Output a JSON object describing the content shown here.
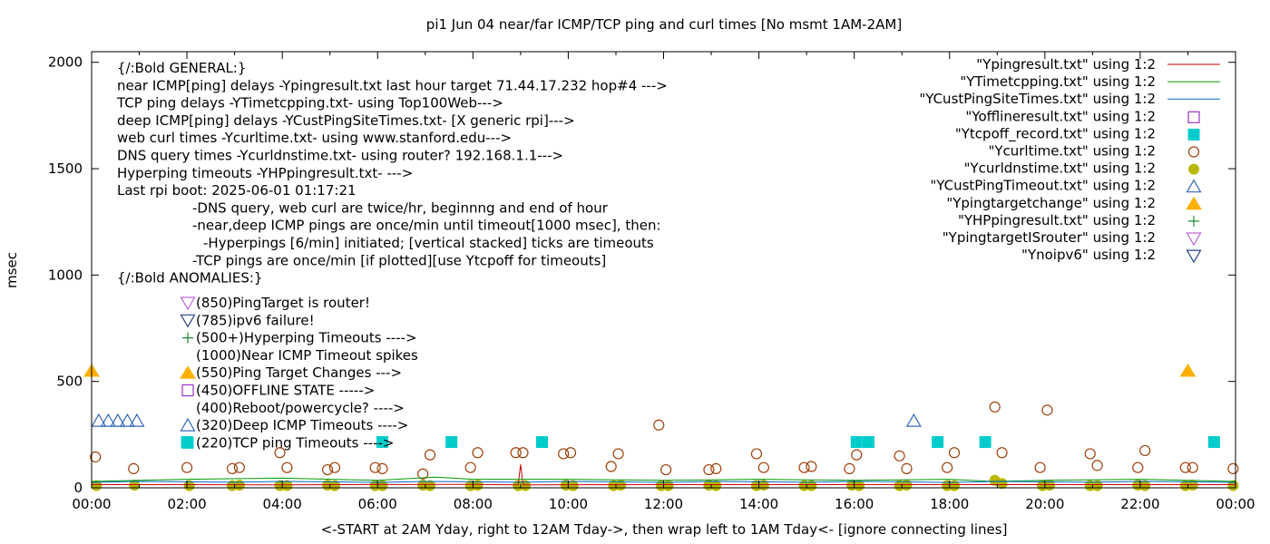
{
  "chart_data": {
    "type": "scatter",
    "title": "pi1 Jun 04  near/far ICMP/TCP ping and curl times [No msmt 1AM-2AM]",
    "xlabel": "<-START at 2AM Yday, right to 12AM Tday->, then wrap left to 1AM Tday<- [ignore connecting lines]",
    "ylabel": "msec",
    "xlim": [
      0,
      24
    ],
    "ylim": [
      0,
      2050
    ],
    "x_ticks": [
      "00:00",
      "02:00",
      "04:00",
      "06:00",
      "08:00",
      "10:00",
      "12:00",
      "14:00",
      "16:00",
      "18:00",
      "20:00",
      "22:00",
      "00:00"
    ],
    "y_ticks": [
      "0",
      "500",
      "1000",
      "1500",
      "2000"
    ],
    "y_tick_values": [
      0,
      500,
      1000,
      1500,
      2000
    ],
    "legend_placement": "top-right",
    "legend": [
      {
        "label": "\"Ypingresult.txt\" using 1:2",
        "symbol": "line",
        "color": "#cc0000"
      },
      {
        "label": "\"YTimetcpping.txt\" using 1:2",
        "symbol": "line",
        "color": "#009900"
      },
      {
        "label": "\"YCustPingSiteTimes.txt\" using 1:2",
        "symbol": "line",
        "color": "#0066cc"
      },
      {
        "label": "\"Yofflineresult.txt\" using 1:2",
        "symbol": "open-square",
        "color": "#9933cc"
      },
      {
        "label": "\"Ytcpoff_record.txt\" using 1:2",
        "symbol": "filled-square",
        "color": "#00cccc"
      },
      {
        "label": "\"Ycurltime.txt\" using 1:2",
        "symbol": "open-circle",
        "color": "#a0400a"
      },
      {
        "label": "\"Ycurldnstime.txt\" using 1:2",
        "symbol": "filled-circle",
        "color": "#b8b800"
      },
      {
        "label": "\"YCustPingTimeout.txt\" using 1:2",
        "symbol": "open-triangle-up",
        "color": "#3366bb"
      },
      {
        "label": "\"Ypingtargetchange\" using 1:2",
        "symbol": "filled-triangle-up",
        "color": "#ffb000"
      },
      {
        "label": "\"YHPpingresult.txt\" using 1:2",
        "symbol": "plus",
        "color": "#228833"
      },
      {
        "label": "\"YpingtargetISrouter\" using 1:2",
        "symbol": "open-triangle-down",
        "color": "#bb66dd"
      },
      {
        "label": "\"Ynoipv6\" using 1:2",
        "symbol": "open-triangle-down",
        "color": "#224488"
      }
    ],
    "annotation_lines": [
      "{/:Bold GENERAL:}",
      "near ICMP[ping] delays -Ypingresult.txt last hour target 71.44.17.232 hop#4 --->",
      "TCP ping delays -YTimetcpping.txt- using Top100Web--->",
      "deep ICMP[ping] delays -YCustPingSiteTimes.txt- [X generic rpi]--->",
      "web curl times -Ycurltime.txt- using www.stanford.edu--->",
      "DNS query times -Ycurldnstime.txt- using router? 192.168.1.1--->",
      "Hyperping timeouts -YHPpingresult.txt- --->",
      "Last rpi boot: 2025-06-01 01:17:21",
      "-DNS query, web curl are twice/hr, beginnng and end of hour",
      "-near,deep ICMP pings are once/min until timeout[1000 msec], then:",
      "-Hyperpings [6/min] initiated; [vertical stacked] ticks are timeouts",
      "-TCP pings are once/min [if plotted][use Ytcpoff for timeouts]",
      "{/:Bold ANOMALIES:}"
    ],
    "anomaly_key": [
      {
        "label": "(850)PingTarget is router!",
        "symbol": "open-triangle-down",
        "color": "#bb66dd"
      },
      {
        "label": "(785)ipv6 failure!",
        "symbol": "open-triangle-down",
        "color": "#224488"
      },
      {
        "label": "(500+)Hyperping Timeouts ---->",
        "symbol": "plus",
        "color": "#228833"
      },
      {
        "label": "(1000)Near ICMP Timeout spikes",
        "symbol": "none",
        "color": "#000000"
      },
      {
        "label": "(550)Ping Target Changes --->",
        "symbol": "filled-triangle-up",
        "color": "#ffb000"
      },
      {
        "label": "(450)OFFLINE STATE ----->",
        "symbol": "open-square",
        "color": "#9933cc"
      },
      {
        "label": "(400)Reboot/powercycle? ---->",
        "symbol": "none",
        "color": "#000000"
      },
      {
        "label": "(320)Deep ICMP Timeouts ---->",
        "symbol": "open-triangle-up",
        "color": "#3366bb"
      },
      {
        "label": "(220)TCP ping Timeouts ---->",
        "symbol": "filled-square",
        "color": "#00cccc"
      }
    ],
    "series": [
      {
        "name": "Ycurltime.txt",
        "symbol": "open-circle",
        "color": "#a0400a",
        "x": [
          0.08,
          0.88,
          2.0,
          2.95,
          3.1,
          3.95,
          4.1,
          4.95,
          5.1,
          5.95,
          6.1,
          6.95,
          7.1,
          7.95,
          8.1,
          8.9,
          9.05,
          9.9,
          10.05,
          10.9,
          11.05,
          11.9,
          12.05,
          12.95,
          13.1,
          13.95,
          14.1,
          14.95,
          15.1,
          15.9,
          16.05,
          16.95,
          17.1,
          17.95,
          18.1,
          18.95,
          19.1,
          19.9,
          20.05,
          20.95,
          21.1,
          21.95,
          22.1,
          22.95,
          23.1,
          23.95
        ],
        "y": [
          145,
          90,
          95,
          90,
          95,
          165,
          95,
          85,
          95,
          95,
          90,
          65,
          155,
          95,
          165,
          165,
          165,
          160,
          165,
          100,
          160,
          295,
          85,
          85,
          90,
          160,
          95,
          95,
          100,
          90,
          155,
          150,
          90,
          95,
          165,
          380,
          165,
          95,
          365,
          160,
          105,
          95,
          175,
          95,
          95,
          90
        ]
      },
      {
        "name": "Ycurldnstime.txt",
        "symbol": "filled-circle",
        "color": "#b8b800",
        "x": [
          0.1,
          0.9,
          2.05,
          2.95,
          3.1,
          3.95,
          4.1,
          4.95,
          5.1,
          5.95,
          6.1,
          6.95,
          7.1,
          7.95,
          8.1,
          8.95,
          9.1,
          9.95,
          10.1,
          10.95,
          11.1,
          11.95,
          12.1,
          12.95,
          13.1,
          13.95,
          14.1,
          14.95,
          15.1,
          15.95,
          16.1,
          16.95,
          17.1,
          17.95,
          18.1,
          18.95,
          19.1,
          19.95,
          20.1,
          20.95,
          21.1,
          21.95,
          22.1,
          22.95,
          23.1,
          23.95
        ],
        "y": [
          10,
          12,
          10,
          10,
          12,
          10,
          10,
          12,
          10,
          10,
          10,
          12,
          10,
          10,
          12,
          10,
          10,
          12,
          10,
          10,
          12,
          10,
          10,
          12,
          10,
          10,
          12,
          10,
          10,
          12,
          10,
          10,
          12,
          10,
          10,
          35,
          20,
          10,
          12,
          10,
          10,
          12,
          10,
          10,
          12,
          10
        ]
      },
      {
        "name": "Ytcpoff_record.txt",
        "symbol": "filled-square",
        "color": "#00cccc",
        "x": [
          2.0,
          6.1,
          7.55,
          9.45,
          16.05,
          16.3,
          17.75,
          18.75,
          23.55
        ],
        "y": [
          215,
          215,
          215,
          215,
          215,
          215,
          215,
          215,
          215
        ]
      },
      {
        "name": "YCustPingTimeout.txt",
        "symbol": "open-triangle-up",
        "color": "#3366bb",
        "x": [
          0.15,
          0.35,
          0.55,
          0.75,
          0.95,
          17.25
        ],
        "y": [
          315,
          315,
          315,
          315,
          315,
          315
        ]
      },
      {
        "name": "Ypingtargetchange",
        "symbol": "filled-triangle-up",
        "color": "#ffb000",
        "x": [
          0.0,
          23.0
        ],
        "y": [
          550,
          550
        ]
      },
      {
        "name": "Ypingresult.txt",
        "symbol": "line",
        "color": "#cc0000",
        "x": [
          0.0,
          4.0,
          8.0,
          8.95,
          9.0,
          9.05,
          12.0,
          16.0,
          20.0,
          24.0
        ],
        "y": [
          15,
          14,
          16,
          14,
          110,
          14,
          15,
          15,
          15,
          15
        ]
      },
      {
        "name": "YTimetcpping.txt",
        "symbol": "line",
        "color": "#009900",
        "x": [
          0.0,
          1.0,
          2.0,
          4.0,
          6.0,
          7.2,
          8.0,
          10.0,
          12.0,
          14.0,
          16.0,
          18.0,
          18.9,
          20.0,
          22.0,
          24.0
        ],
        "y": [
          30,
          35,
          40,
          45,
          35,
          50,
          40,
          40,
          35,
          40,
          35,
          40,
          30,
          35,
          40,
          30
        ]
      },
      {
        "name": "YCustPingSiteTimes.txt",
        "symbol": "line",
        "color": "#0066cc",
        "x": [
          0.0,
          1.0,
          2.0,
          3.0,
          4.0,
          5.0,
          6.0,
          7.0,
          8.0,
          9.0,
          10.0,
          11.0,
          12.0,
          13.0,
          14.0,
          15.0,
          16.0,
          17.0,
          18.0,
          19.0,
          20.0,
          21.0,
          22.0,
          23.0,
          24.0
        ],
        "y": [
          25,
          30,
          28,
          26,
          30,
          28,
          25,
          30,
          28,
          26,
          30,
          28,
          25,
          30,
          28,
          26,
          30,
          28,
          25,
          30,
          28,
          26,
          30,
          28,
          25
        ]
      }
    ]
  }
}
